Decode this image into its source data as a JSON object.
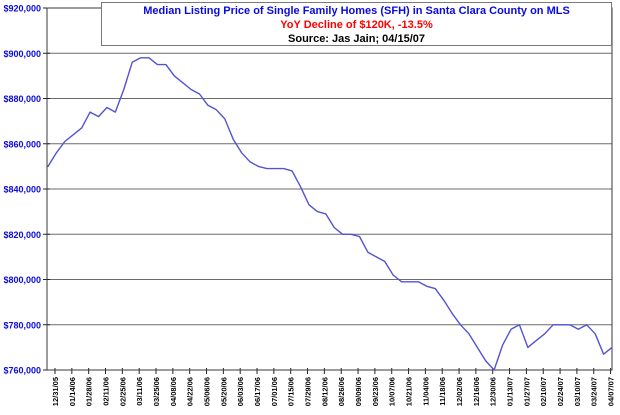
{
  "chart_data": {
    "type": "line",
    "title": "Median Listing Price of Single Family Homes (SFH) in Santa Clara County on MLS",
    "subtitle": "YoY Decline of $120K, -13.5%",
    "source": "Source: Jas Jain; 04/15/07",
    "title_color": "#0a0ae0",
    "subtitle_color": "#ff0000",
    "source_color": "#000000",
    "line_color": "#5353d4",
    "axis_label_color": "#0a0ae0",
    "grid": "horizontal",
    "legend": "none",
    "ylim": [
      760000,
      920000
    ],
    "y_tick_step": 20000,
    "y_tick_labels": [
      "$920,000",
      "$900,000",
      "$880,000",
      "$860,000",
      "$840,000",
      "$820,000",
      "$800,000",
      "$780,000",
      "$760,000"
    ],
    "x_tick_labels": [
      "12/31/05",
      "01/14/06",
      "01/28/06",
      "02/11/06",
      "02/25/06",
      "03/11/06",
      "03/25/06",
      "04/08/06",
      "04/22/06",
      "05/06/06",
      "05/20/06",
      "06/03/06",
      "06/17/06",
      "07/01/06",
      "07/15/06",
      "07/29/06",
      "08/12/06",
      "08/26/06",
      "09/09/06",
      "09/23/06",
      "10/07/06",
      "10/21/06",
      "11/04/06",
      "11/18/06",
      "12/02/06",
      "12/16/06",
      "12/30/06",
      "01/13/07",
      "01/27/07",
      "02/10/07",
      "02/24/07",
      "03/10/07",
      "03/24/07",
      "04/07/07"
    ],
    "series": [
      {
        "name": "Median Listing Price (SFH)",
        "x": [
          "12/31/05",
          "01/07/06",
          "01/14/06",
          "01/21/06",
          "01/28/06",
          "02/04/06",
          "02/11/06",
          "02/18/06",
          "02/25/06",
          "03/04/06",
          "03/11/06",
          "03/18/06",
          "03/25/06",
          "04/01/06",
          "04/08/06",
          "04/15/06",
          "04/22/06",
          "04/29/06",
          "05/06/06",
          "05/13/06",
          "05/20/06",
          "05/27/06",
          "06/03/06",
          "06/10/06",
          "06/17/06",
          "06/24/06",
          "07/01/06",
          "07/08/06",
          "07/15/06",
          "07/22/06",
          "07/29/06",
          "08/05/06",
          "08/12/06",
          "08/19/06",
          "08/26/06",
          "09/02/06",
          "09/09/06",
          "09/16/06",
          "09/23/06",
          "09/30/06",
          "10/07/06",
          "10/14/06",
          "10/21/06",
          "10/28/06",
          "11/04/06",
          "11/11/06",
          "11/18/06",
          "11/25/06",
          "12/02/06",
          "12/09/06",
          "12/16/06",
          "12/23/06",
          "12/30/06",
          "01/06/07",
          "01/13/07",
          "01/20/07",
          "01/27/07",
          "02/03/07",
          "02/10/07",
          "02/17/07",
          "02/24/07",
          "03/03/07",
          "03/10/07",
          "03/17/07",
          "03/24/07",
          "03/31/07",
          "04/07/07",
          "04/14/07"
        ],
        "values": [
          850000,
          856000,
          861000,
          864000,
          867000,
          874000,
          872000,
          876000,
          874000,
          884000,
          896000,
          898000,
          898000,
          895000,
          895000,
          890000,
          887000,
          884000,
          882000,
          877000,
          875000,
          871000,
          862000,
          856000,
          852000,
          850000,
          849000,
          849000,
          849000,
          848000,
          841000,
          833000,
          830000,
          829000,
          823000,
          820000,
          820000,
          819000,
          812000,
          810000,
          808000,
          802000,
          799000,
          799000,
          799000,
          797000,
          796000,
          791000,
          785000,
          780000,
          776000,
          770000,
          764000,
          760000,
          771000,
          778000,
          780000,
          770000,
          773000,
          776000,
          780000,
          780000,
          780000,
          778000,
          780000,
          776000,
          767000,
          770000
        ]
      }
    ]
  }
}
